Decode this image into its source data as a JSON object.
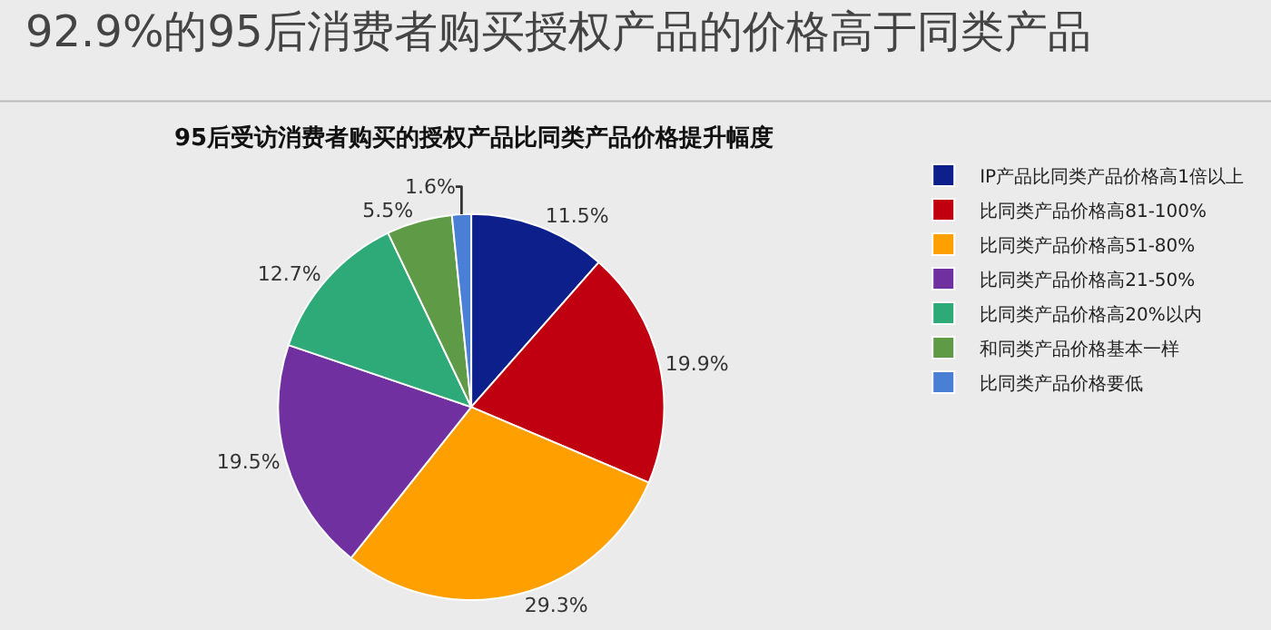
{
  "chart_data": {
    "type": "pie",
    "title": "92.9%的95后消费者购买授权产品的价格高于同类产品",
    "subtitle": "95后受访消费者购买的授权产品比同类产品价格提升幅度",
    "categories": [
      "IP产品比同类产品价格高1倍以上",
      "比同类产品价格高81-100%",
      "比同类产品价格高51-80%",
      "比同类产品价格高21-50%",
      "比同类产品价格高20%以内",
      "和同类产品价格基本一样",
      "比同类产品价格要低"
    ],
    "values": [
      11.5,
      19.9,
      29.3,
      19.5,
      12.7,
      5.5,
      1.6
    ],
    "value_labels": [
      "11.5%",
      "19.9%",
      "29.3%",
      "19.5%",
      "12.7%",
      "5.5%",
      "1.6%"
    ],
    "colors": [
      "#0c1f8a",
      "#c00010",
      "#ffa000",
      "#7030a0",
      "#2eaa78",
      "#5f9a46",
      "#4a7fd6"
    ],
    "legend": "right"
  }
}
